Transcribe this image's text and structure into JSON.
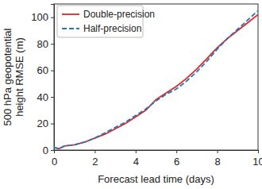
{
  "chart_data": {
    "type": "line",
    "xlabel": "Forecast lead time (days)",
    "ylabel": "500 hPa geopotential\nheight RMSE (m)",
    "x": [
      0,
      0.25,
      0.5,
      1,
      1.5,
      2,
      2.5,
      3,
      3.5,
      4,
      4.5,
      5,
      5.5,
      6,
      6.5,
      7,
      7.5,
      8,
      8.5,
      9,
      9.5,
      10
    ],
    "series": [
      {
        "name": "Double-precision",
        "color": "#e3262b",
        "line_style": "solid",
        "values": [
          2,
          1,
          3,
          4,
          6,
          9,
          12,
          16,
          20,
          25,
          30,
          38,
          43,
          48,
          54,
          61,
          69,
          77,
          84,
          90,
          96,
          102
        ]
      },
      {
        "name": "Half-precision",
        "color": "#1f78b8",
        "line_style": "dashed",
        "values": [
          2,
          1,
          3,
          4,
          6,
          9,
          13,
          17,
          21,
          26,
          31,
          37,
          42,
          46,
          52,
          59,
          67,
          76,
          84,
          91,
          98,
          105
        ]
      }
    ],
    "xlim": [
      0,
      10
    ],
    "xticks": [
      0,
      2,
      4,
      6,
      8,
      10
    ],
    "ylim": [
      0,
      110
    ],
    "yticks": [
      0,
      20,
      40,
      60,
      80,
      100
    ],
    "legend": "upper left",
    "grid": false
  }
}
